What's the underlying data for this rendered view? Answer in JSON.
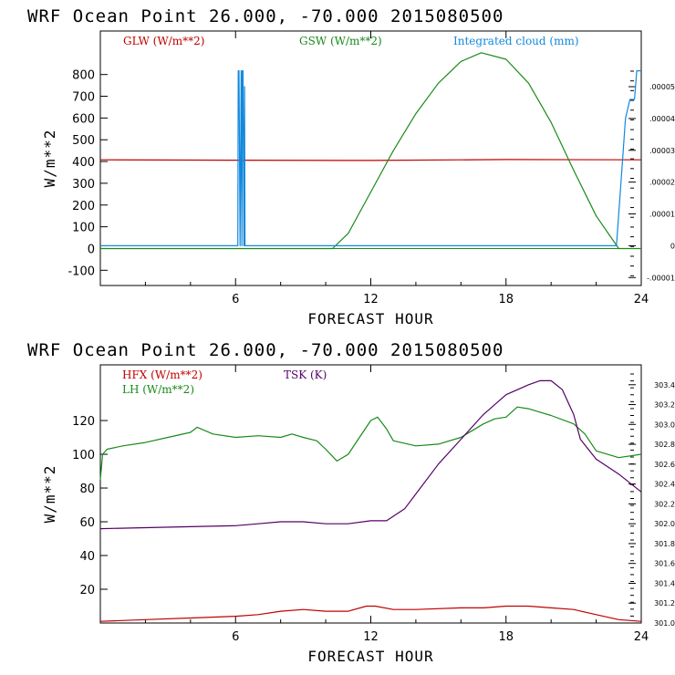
{
  "chart_data": [
    {
      "type": "line",
      "title": "WRF   Ocean Point   26.000, -70.000  2015080500",
      "xlabel": "FORECAST HOUR",
      "ylabel": "W/m**2",
      "xlim": [
        0,
        24
      ],
      "ylim": [
        -170,
        1000
      ],
      "x_ticks": [
        "6",
        "12",
        "18",
        "24"
      ],
      "y_ticks": [
        "-100",
        "0",
        "100",
        "200",
        "300",
        "400",
        "500",
        "600",
        "700",
        "800"
      ],
      "y2_ticks": [
        ".00005",
        ".00004",
        ".00003",
        ".00002",
        ".00001",
        "0",
        "-.00001"
      ],
      "y2lim": [
        -1.25e-05,
        6.75e-05
      ],
      "series": [
        {
          "name": "GLW (W/m**2)",
          "color": "#c00000",
          "axis": "left",
          "x": [
            0,
            6,
            12,
            18,
            24
          ],
          "y": [
            408,
            406,
            405,
            409,
            408
          ]
        },
        {
          "name": "GSW (W/m**2)",
          "color": "#1a8a1a",
          "axis": "left",
          "x": [
            0,
            10.3,
            11,
            12,
            13,
            14,
            15,
            16,
            16.9,
            18,
            19,
            20,
            21,
            22,
            23,
            24
          ],
          "y": [
            0,
            0,
            70,
            260,
            450,
            620,
            760,
            860,
            900,
            870,
            760,
            580,
            360,
            150,
            0,
            0
          ]
        },
        {
          "name": "Integrated cloud (mm)",
          "color": "#1188dd",
          "axis": "right",
          "x": [
            0,
            6.1,
            6.12,
            6.15,
            6.2,
            6.25,
            6.28,
            6.3,
            6.33,
            6.37,
            6.4,
            6.42,
            6.5,
            6.55,
            22.9,
            23.1,
            23.3,
            23.5,
            23.6,
            23.7,
            23.8,
            23.85,
            24
          ],
          "y": [
            0,
            0,
            5.5e-05,
            5.5e-05,
            0,
            5.5e-05,
            0,
            5.5e-05,
            5.5e-05,
            0,
            5e-05,
            0,
            0,
            0,
            0,
            2e-05,
            4e-05,
            4.6e-05,
            4.6e-05,
            4.6e-05,
            5.5e-05,
            5.5e-05,
            5.5e-05
          ]
        }
      ]
    },
    {
      "type": "line",
      "title": "WRF   Ocean Point   26.000, -70.000  2015080500",
      "xlabel": "FORECAST HOUR",
      "ylabel": "W/m**2",
      "xlim": [
        0,
        24
      ],
      "ylim": [
        0,
        153
      ],
      "x_ticks": [
        "6",
        "12",
        "18",
        "24"
      ],
      "y_ticks": [
        "20",
        "40",
        "60",
        "80",
        "100",
        "120"
      ],
      "y2_ticks": [
        "301.0",
        "301.2",
        "301.4",
        "301.6",
        "301.8",
        "302.0",
        "302.2",
        "302.4",
        "302.6",
        "302.8",
        "303.0",
        "303.2",
        "303.4"
      ],
      "y2lim": [
        301.0,
        303.6
      ],
      "series": [
        {
          "name": "HFX (W/m**2)",
          "color": "#c00000",
          "axis": "left",
          "x": [
            0,
            2,
            4,
            6,
            7,
            8,
            9,
            10,
            11,
            11.8,
            12.2,
            13,
            14,
            16,
            17,
            18,
            19,
            20,
            21,
            22,
            23,
            24
          ],
          "y": [
            1,
            2,
            3,
            4,
            5,
            7,
            8,
            7,
            7,
            10,
            10,
            8,
            8,
            9,
            9,
            10,
            10,
            9,
            8,
            5,
            2,
            1
          ]
        },
        {
          "name": "LH (W/m**2)",
          "color": "#1a8a1a",
          "axis": "left",
          "x": [
            0,
            0.1,
            0.3,
            1,
            2,
            3,
            4,
            4.3,
            5,
            6,
            7,
            8,
            8.5,
            9,
            9.6,
            10,
            10.5,
            11,
            11.5,
            12,
            12.3,
            12.7,
            13,
            14,
            15,
            16,
            17,
            17.5,
            18,
            18.5,
            19,
            19.5,
            20,
            21,
            21.5,
            22,
            23,
            24
          ],
          "y": [
            85,
            100,
            103,
            105,
            107,
            110,
            113,
            116,
            112,
            110,
            111,
            110,
            112,
            110,
            108,
            103,
            96,
            100,
            110,
            120,
            122,
            115,
            108,
            105,
            106,
            110,
            118,
            121,
            122,
            128,
            127,
            125,
            123,
            118,
            112,
            102,
            98,
            100
          ]
        },
        {
          "name": "TSK (K)",
          "color": "#550066",
          "axis": "right",
          "x": [
            0,
            2,
            4,
            6,
            7,
            8,
            9,
            10,
            11,
            12,
            12.7,
            13.5,
            14,
            15,
            16,
            17,
            18,
            19,
            19.5,
            20,
            20.5,
            21,
            21.3,
            22,
            23,
            24
          ],
          "y": [
            301.95,
            301.96,
            301.97,
            301.98,
            302.0,
            302.02,
            302.02,
            302.0,
            302.0,
            302.03,
            302.03,
            302.15,
            302.3,
            302.6,
            302.85,
            303.1,
            303.3,
            303.4,
            303.44,
            303.44,
            303.35,
            303.1,
            302.85,
            302.65,
            302.5,
            302.32
          ]
        }
      ]
    }
  ]
}
